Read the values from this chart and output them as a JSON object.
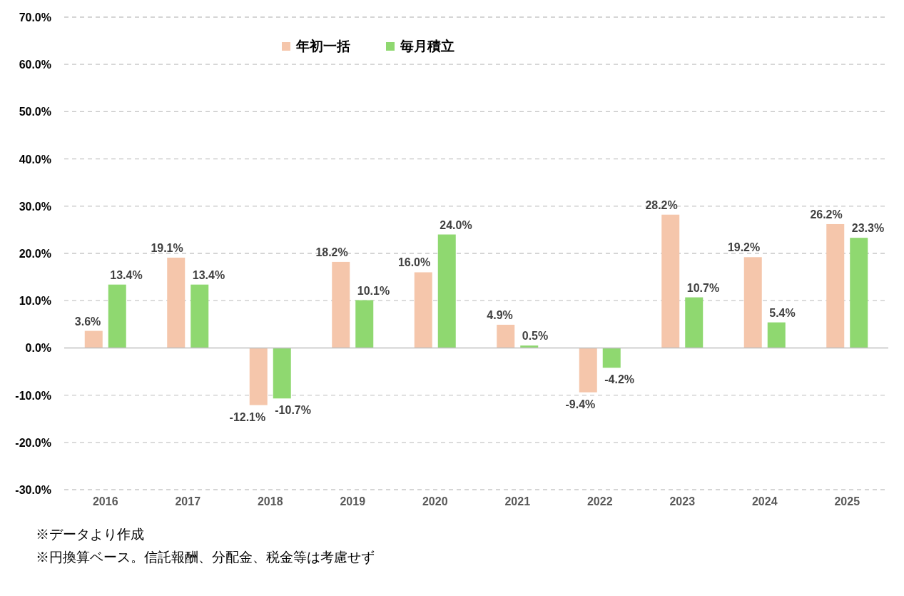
{
  "chart_data": {
    "type": "bar",
    "categories": [
      "2016",
      "2017",
      "2018",
      "2019",
      "2020",
      "2021",
      "2022",
      "2023",
      "2024",
      "2025"
    ],
    "series": [
      {
        "name": "年初一括",
        "color": "#f5c6ab",
        "values": [
          3.6,
          19.1,
          -12.1,
          18.2,
          16.0,
          4.9,
          -9.4,
          28.2,
          19.2,
          26.2
        ],
        "value_labels": [
          "3.6%",
          "19.1%",
          "-12.1%",
          "18.2%",
          "16.0%",
          "4.9%",
          "-9.4%",
          "28.2%",
          "19.2%",
          "26.2%"
        ]
      },
      {
        "name": "毎月積立",
        "color": "#8fd870",
        "values": [
          13.4,
          13.4,
          -10.7,
          10.1,
          24.0,
          0.5,
          -4.2,
          10.7,
          5.4,
          23.3
        ],
        "value_labels": [
          "13.4%",
          "13.4%",
          "-10.7%",
          "10.1%",
          "24.0%",
          "0.5%",
          "-4.2%",
          "10.7%",
          "5.4%",
          "23.3%"
        ]
      }
    ],
    "ylim": [
      -30,
      70
    ],
    "yticks": [
      {
        "value": -30,
        "label": "-30.0%"
      },
      {
        "value": -20,
        "label": "-20.0%"
      },
      {
        "value": -10,
        "label": "-10.0%"
      },
      {
        "value": 0,
        "label": "0.0%"
      },
      {
        "value": 10,
        "label": "10.0%"
      },
      {
        "value": 20,
        "label": "20.0%"
      },
      {
        "value": 30,
        "label": "30.0%"
      },
      {
        "value": 40,
        "label": "40.0%"
      },
      {
        "value": 50,
        "label": "50.0%"
      },
      {
        "value": 60,
        "label": "60.0%"
      },
      {
        "value": 70,
        "label": "70.0%"
      }
    ],
    "grid": "y",
    "legend": "top",
    "annotations": [
      "※データより作成",
      "※円換算ベース。信託報酬、分配金、税金等は考慮せず"
    ]
  }
}
